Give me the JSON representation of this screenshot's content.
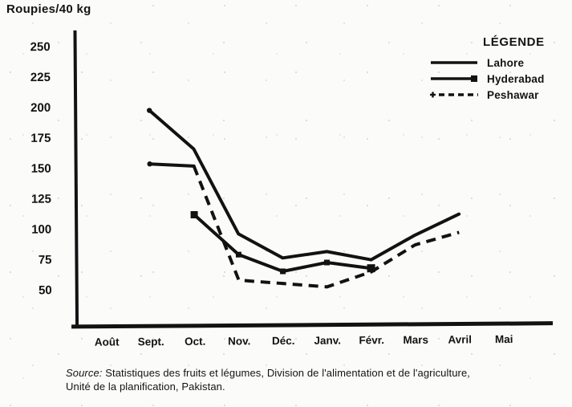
{
  "title": "Roupies/40 kg",
  "legend": {
    "title": "LÉGENDE",
    "items": [
      {
        "label": "Lahore",
        "style": "solid"
      },
      {
        "label": "Hyderabad",
        "style": "solid-square"
      },
      {
        "label": "Peshawar",
        "style": "dashed"
      }
    ]
  },
  "source": {
    "label": "Source:",
    "text1": "Statistiques des fruits et légumes, Division de l'alimentation et de l'agriculture,",
    "text2": "Unité de la planification, Pakistan."
  },
  "chart_data": {
    "type": "line",
    "title": "",
    "ylabel": "Roupies/40 kg",
    "xlabel": "",
    "categories": [
      "Août",
      "Sept.",
      "Oct.",
      "Nov.",
      "Déc.",
      "Janv.",
      "Févr.",
      "Mars",
      "Avril",
      "Mai"
    ],
    "yticks": [
      50,
      75,
      100,
      125,
      150,
      175,
      200,
      225,
      250
    ],
    "ylim": [
      50,
      250
    ],
    "grid": false,
    "legend_position": "upper right",
    "series": [
      {
        "name": "Lahore",
        "style": "solid",
        "marker": "none",
        "start_dot": true,
        "x": [
          "Sept.",
          "Oct.",
          "Nov.",
          "Déc.",
          "Janv.",
          "Févr.",
          "Mars",
          "Avril"
        ],
        "values": [
          197,
          165,
          95,
          75,
          80,
          73,
          93,
          110
        ]
      },
      {
        "name": "Hyderabad",
        "style": "solid",
        "marker": "square",
        "start_dot": false,
        "x": [
          "Oct.",
          "Nov.",
          "Déc.",
          "Janv.",
          "Févr."
        ],
        "values": [
          111,
          78,
          64,
          71,
          66
        ]
      },
      {
        "name": "Peshawar",
        "style": "dashed",
        "marker": "none",
        "start_dot": true,
        "x": [
          "Sept.",
          "Oct.",
          "Nov.",
          "Déc.",
          "Janv.",
          "Févr.",
          "Mars",
          "Avril"
        ],
        "values": [
          153,
          151,
          57,
          54,
          51,
          63,
          85,
          95
        ]
      }
    ]
  }
}
